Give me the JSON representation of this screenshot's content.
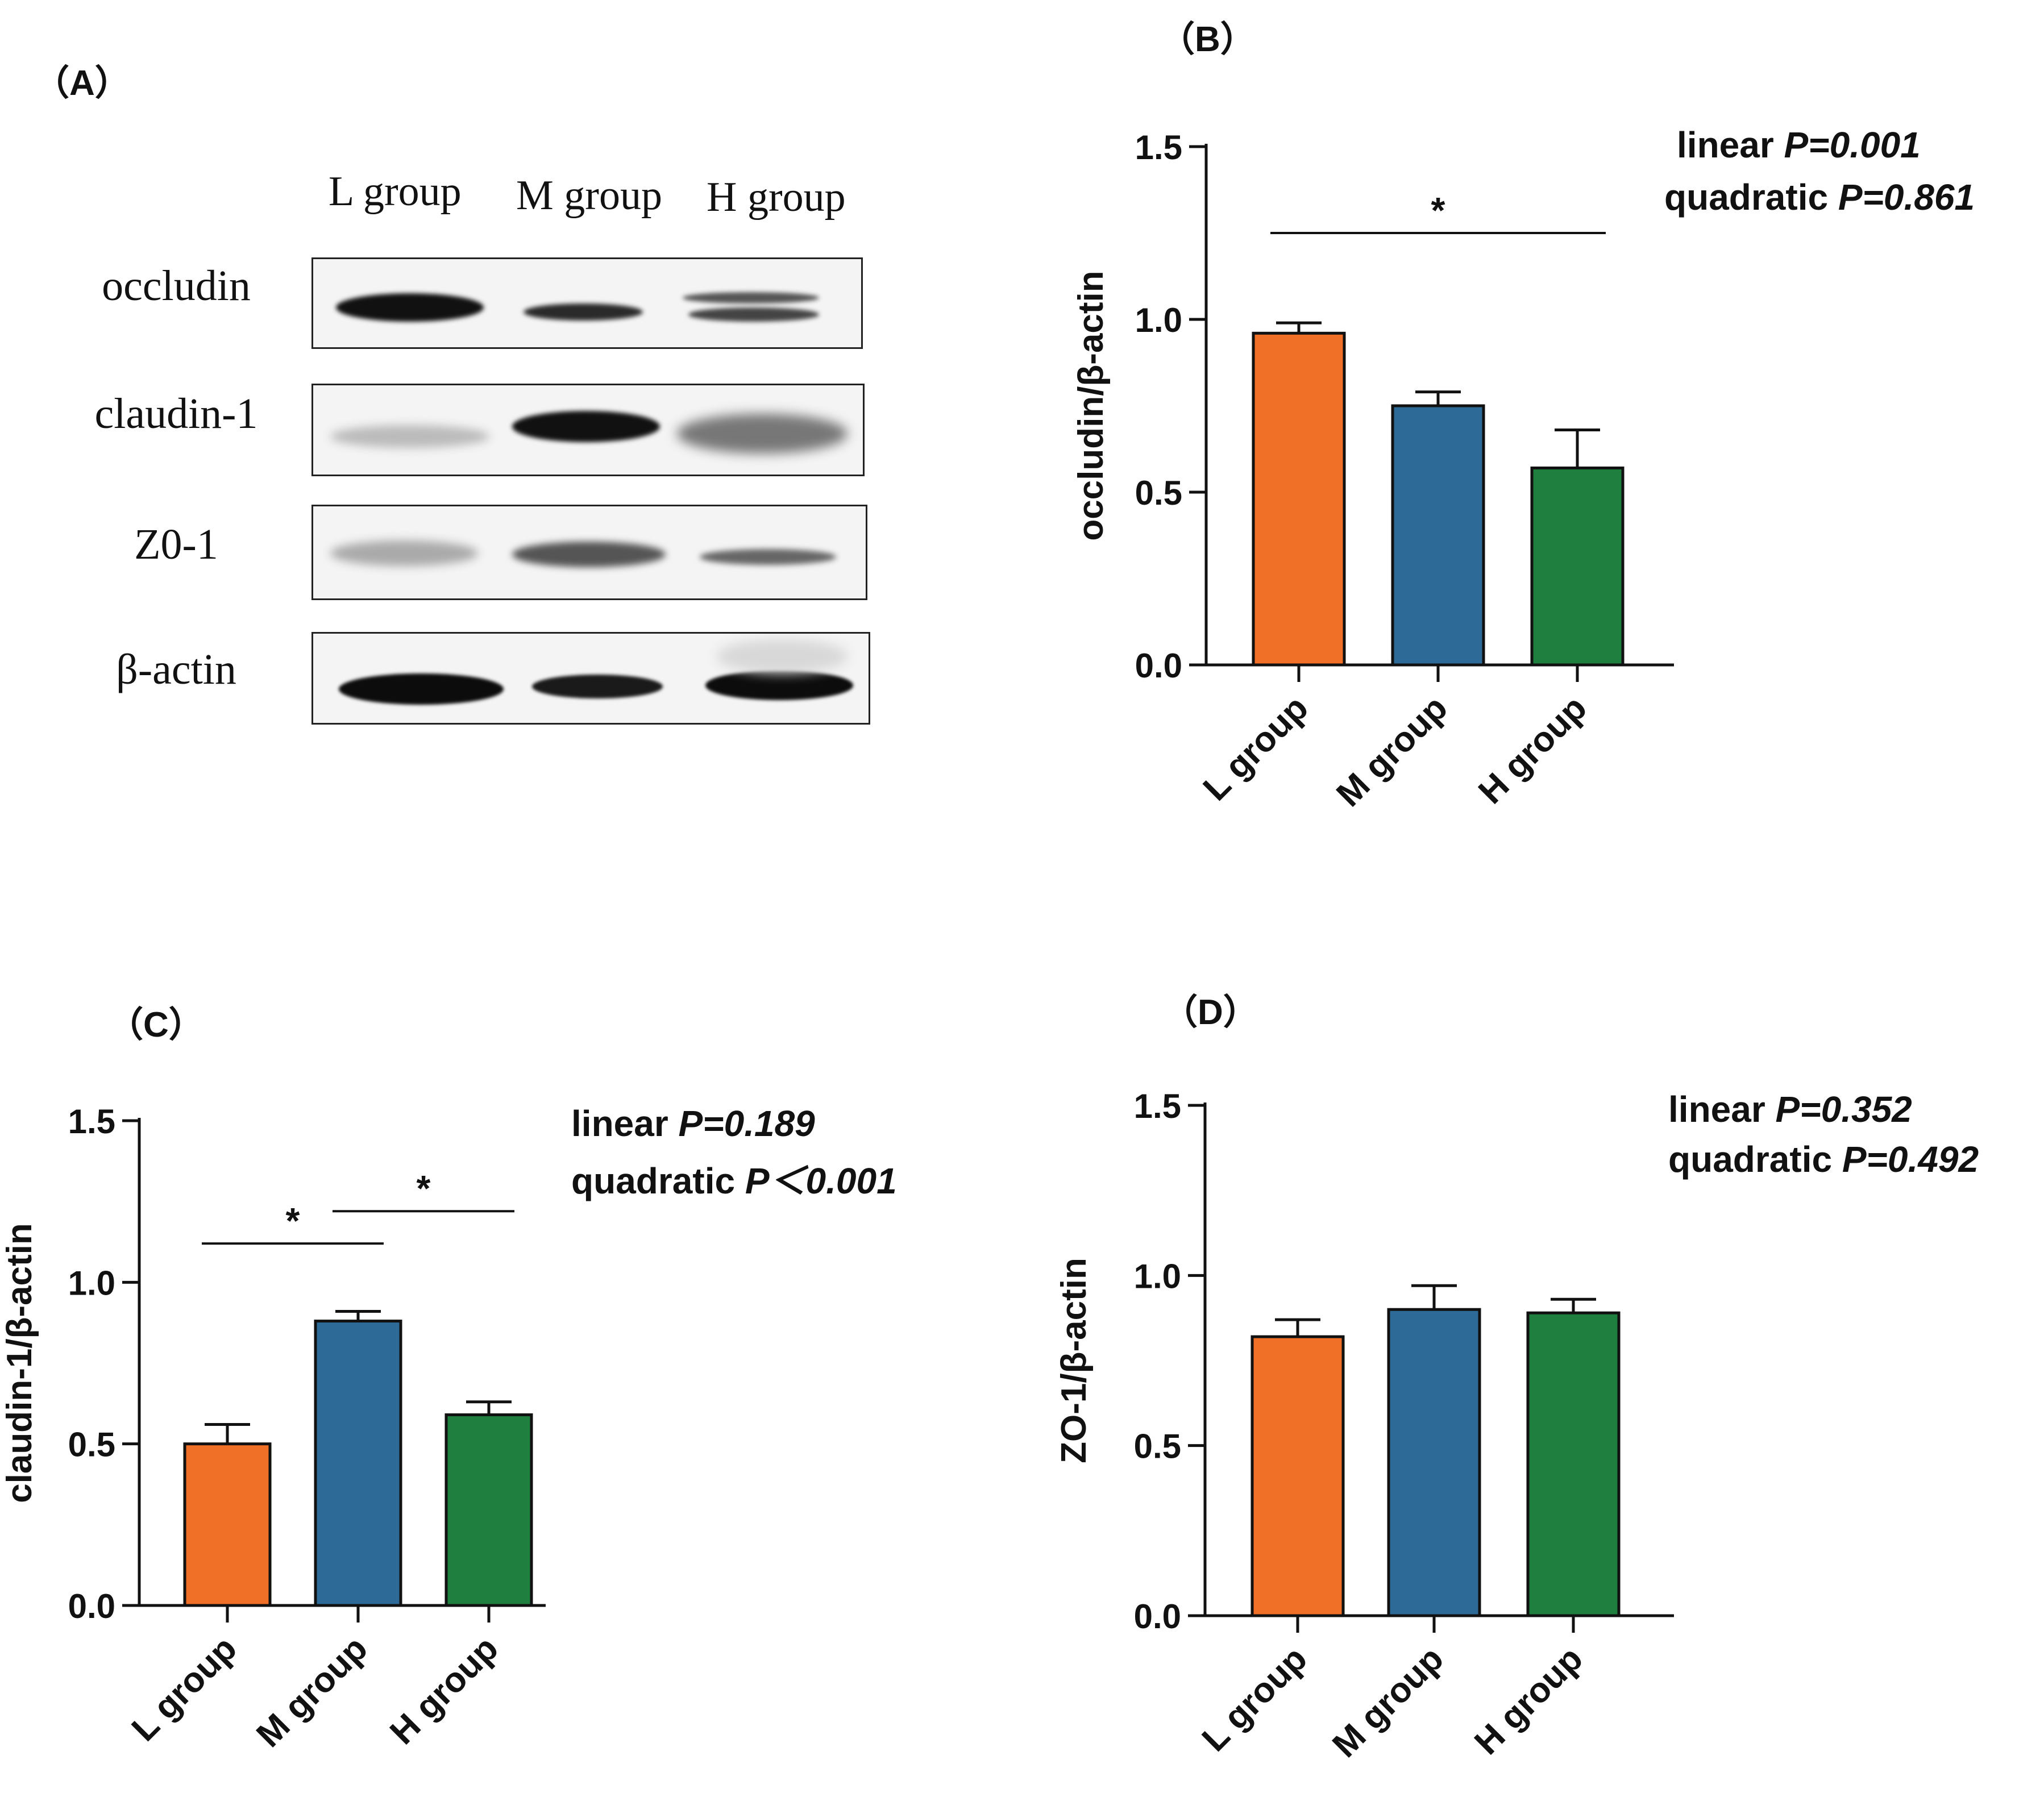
{
  "panels": {
    "a": "（A）",
    "b": "（B）",
    "c": "（C）",
    "d": "（D）"
  },
  "blot": {
    "lanes": [
      "L group",
      "M group",
      "H group"
    ],
    "rows": [
      "occludin",
      "claudin-1",
      "Z0-1",
      "β-actin"
    ]
  },
  "stats": {
    "b": {
      "linear_label": "linear ",
      "linear_p": "P=0.001",
      "quad_label": "quadratic ",
      "quad_p": "P=0.861"
    },
    "c": {
      "linear_label": "linear ",
      "linear_p": "P=0.189",
      "quad_label": "quadratic ",
      "quad_p": "P＜0.001"
    },
    "d": {
      "linear_label": "linear ",
      "linear_p": "P=0.352",
      "quad_label": "quadratic ",
      "quad_p": "P=0.492"
    }
  },
  "colors": {
    "L group": "#f07027",
    "M group": "#2e6a98",
    "H group": "#1f7f3f"
  },
  "chart_data": [
    {
      "id": "b",
      "type": "bar",
      "categories": [
        "L group",
        "M group",
        "H group"
      ],
      "values": [
        0.96,
        0.75,
        0.57
      ],
      "errors": [
        0.03,
        0.04,
        0.11
      ],
      "ylabel": "occludin/β-actin",
      "ylim": [
        0,
        1.5
      ],
      "yticks": [
        "0.0",
        "0.5",
        "1.0",
        "1.5"
      ],
      "significance": [
        {
          "from": 0,
          "to": 2,
          "y": 1.25,
          "label": "*"
        }
      ]
    },
    {
      "id": "c",
      "type": "bar",
      "categories": [
        "L group",
        "M group",
        "H group"
      ],
      "values": [
        0.5,
        0.88,
        0.59
      ],
      "errors": [
        0.06,
        0.03,
        0.04
      ],
      "ylabel": "claudin-1/β-actin",
      "ylim": [
        0,
        1.5
      ],
      "yticks": [
        "0.0",
        "0.5",
        "1.0",
        "1.5"
      ],
      "significance": [
        {
          "from": 0,
          "to": 1,
          "y": 1.12,
          "label": "*"
        },
        {
          "from": 1,
          "to": 2,
          "y": 1.22,
          "label": "*"
        }
      ]
    },
    {
      "id": "d",
      "type": "bar",
      "categories": [
        "L group",
        "M group",
        "H group"
      ],
      "values": [
        0.82,
        0.9,
        0.89
      ],
      "errors": [
        0.05,
        0.07,
        0.04
      ],
      "ylabel": "ZO-1/β-actin",
      "ylim": [
        0,
        1.5
      ],
      "yticks": [
        "0.0",
        "0.5",
        "1.0",
        "1.5"
      ],
      "significance": []
    }
  ]
}
